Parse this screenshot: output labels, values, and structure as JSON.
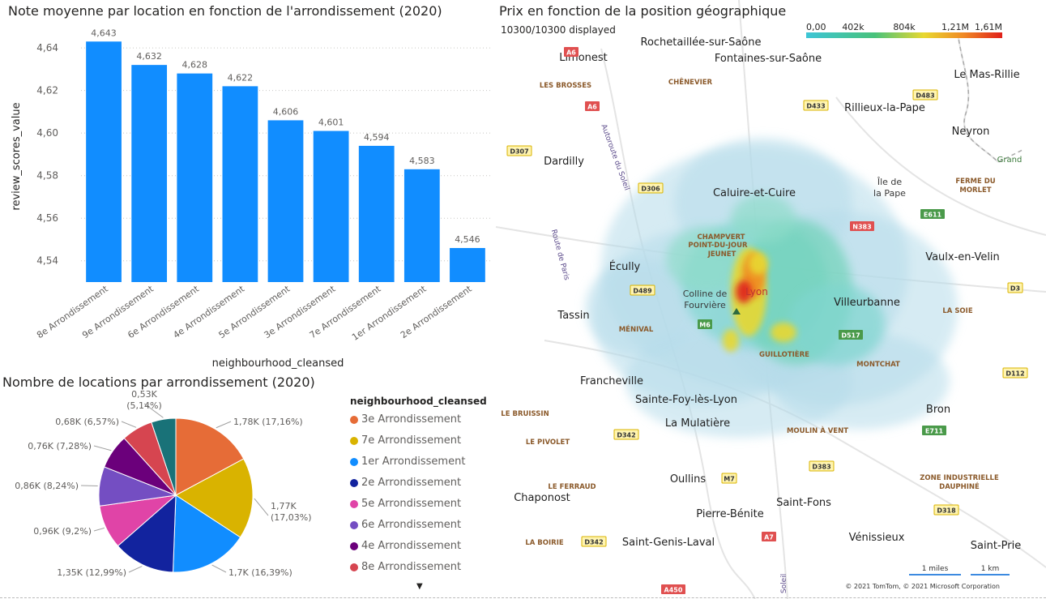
{
  "bar_chart": {
    "title": "Note moyenne par location en fonction de l'arrondissement (2020)"
  },
  "pie_chart": {
    "title": "Nombre de locations par arrondissement (2020)",
    "legend_title": "neighbourhood_cleansed",
    "more_icon": "caret-down-icon"
  },
  "map": {
    "title": "Prix en fonction de la position géographique",
    "status": "10300/10300 displayed",
    "scale_ticks": [
      "0,00",
      "402k",
      "804k",
      "1,21M",
      "1,61M"
    ],
    "scale_colors": [
      "#3dc5d6",
      "#48c27b",
      "#e8d830",
      "#f08a24",
      "#e0201a"
    ],
    "scale_miles": "1 miles",
    "scale_km": "1 km",
    "copyright": "© 2021 TomTom, © 2021 Microsoft Corporation",
    "places": [
      {
        "text": "Rochetaillée-sur-Saône",
        "kind": "city"
      },
      {
        "text": "Limonest",
        "kind": "city"
      },
      {
        "text": "Fontaines-sur-Saône",
        "kind": "city"
      },
      {
        "text": "Le Mas-Rillie",
        "kind": "city"
      },
      {
        "text": "Rillieux-la-Pape",
        "kind": "city"
      },
      {
        "text": "Neyron",
        "kind": "city"
      },
      {
        "text": "Dardilly",
        "kind": "city"
      },
      {
        "text": "Caluire-et-Cuire",
        "kind": "city"
      },
      {
        "text": "Île de",
        "kind": "area"
      },
      {
        "text": "la Pape",
        "kind": "area"
      },
      {
        "text": "Écully",
        "kind": "city"
      },
      {
        "text": "Vaulx-en-Velin",
        "kind": "city"
      },
      {
        "text": "Colline de",
        "kind": "area"
      },
      {
        "text": "Fourvière",
        "kind": "area"
      },
      {
        "text": "Lyon",
        "kind": "area"
      },
      {
        "text": "Tassin",
        "kind": "city"
      },
      {
        "text": "Villeurbanne",
        "kind": "city"
      },
      {
        "text": "Francheville",
        "kind": "city"
      },
      {
        "text": "Sainte-Foy-lès-Lyon",
        "kind": "city"
      },
      {
        "text": "Bron",
        "kind": "city"
      },
      {
        "text": "La Mulatière",
        "kind": "city"
      },
      {
        "text": "Oullins",
        "kind": "city"
      },
      {
        "text": "Chaponost",
        "kind": "city"
      },
      {
        "text": "Saint-Fons",
        "kind": "city"
      },
      {
        "text": "Pierre-Bénite",
        "kind": "city"
      },
      {
        "text": "Vénissieux",
        "kind": "city"
      },
      {
        "text": "Saint-Genis-Laval",
        "kind": "city"
      },
      {
        "text": "Saint-Prie",
        "kind": "city"
      },
      {
        "text": "LES BROSSES",
        "kind": "district"
      },
      {
        "text": "CHÊNEVIER",
        "kind": "district"
      },
      {
        "text": "FERME DU",
        "kind": "district"
      },
      {
        "text": "MORLET",
        "kind": "district"
      },
      {
        "text": "CHAMPVERT",
        "kind": "district"
      },
      {
        "text": "POINT-DU-JOUR",
        "kind": "district"
      },
      {
        "text": "JEUNET",
        "kind": "district"
      },
      {
        "text": "LA SOIE",
        "kind": "district"
      },
      {
        "text": "MÉNIVAL",
        "kind": "district"
      },
      {
        "text": "GUILLOTIÈRE",
        "kind": "district"
      },
      {
        "text": "MONTCHAT",
        "kind": "district"
      },
      {
        "text": "LE BRUISSIN",
        "kind": "district"
      },
      {
        "text": "LE PIVOLET",
        "kind": "district"
      },
      {
        "text": "MOULIN À VENT",
        "kind": "district"
      },
      {
        "text": "LE FERRAUD",
        "kind": "district"
      },
      {
        "text": "ZONE INDUSTRIELLE",
        "kind": "district"
      },
      {
        "text": "DAUPHINÉ",
        "kind": "district"
      },
      {
        "text": "LA BOIRIE",
        "kind": "district"
      },
      {
        "text": "Autoroute du Soleil",
        "kind": "road"
      },
      {
        "text": "Route de Paris",
        "kind": "road"
      },
      {
        "text": "Soleil",
        "kind": "road"
      },
      {
        "text": "Grand",
        "kind": "area"
      }
    ],
    "shields": [
      {
        "text": "A6",
        "type": "red"
      },
      {
        "text": "A6",
        "type": "red"
      },
      {
        "text": "D433",
        "type": "yellow"
      },
      {
        "text": "D483",
        "type": "yellow"
      },
      {
        "text": "D307",
        "type": "yellow"
      },
      {
        "text": "D306",
        "type": "yellow"
      },
      {
        "text": "E611",
        "type": "green"
      },
      {
        "text": "N383",
        "type": "red"
      },
      {
        "text": "D489",
        "type": "yellow"
      },
      {
        "text": "M6",
        "type": "green"
      },
      {
        "text": "D517",
        "type": "green"
      },
      {
        "text": "D112",
        "type": "yellow"
      },
      {
        "text": "E711",
        "type": "green"
      },
      {
        "text": "D342",
        "type": "yellow"
      },
      {
        "text": "D383",
        "type": "yellow"
      },
      {
        "text": "M7",
        "type": "yellow"
      },
      {
        "text": "D318",
        "type": "yellow"
      },
      {
        "text": "A7",
        "type": "red"
      },
      {
        "text": "D342",
        "type": "yellow"
      },
      {
        "text": "A450",
        "type": "red"
      },
      {
        "text": "D3",
        "type": "yellow"
      }
    ]
  },
  "chart_data": [
    {
      "type": "bar",
      "title": "Note moyenne par location en fonction de l'arrondissement (2020)",
      "xlabel": "neighbourhood_cleansed",
      "ylabel": "review_scores_value",
      "categories": [
        "8e Arrondissement",
        "9e Arrondissement",
        "6e Arrondissement",
        "4e Arrondissement",
        "5e Arrondissement",
        "3e Arrondissement",
        "7e Arrondissement",
        "1er Arrondissement",
        "2e Arrondissement"
      ],
      "values": [
        4.643,
        4.632,
        4.628,
        4.622,
        4.606,
        4.601,
        4.594,
        4.583,
        4.546
      ],
      "value_labels": [
        "4,643",
        "4,632",
        "4,628",
        "4,622",
        "4,606",
        "4,601",
        "4,594",
        "4,583",
        "4,546"
      ],
      "yticks": [
        "4,54",
        "4,56",
        "4,58",
        "4,60",
        "4,62",
        "4,64"
      ],
      "ylim": [
        4.53,
        4.645
      ],
      "grid": true,
      "color": "#118dff"
    },
    {
      "type": "pie",
      "title": "Nombre de locations par arrondissement (2020)",
      "legend_title": "neighbourhood_cleansed",
      "slices": [
        {
          "name": "3e Arrondissement",
          "value": 17.16,
          "label": "1,78K (17,16%)",
          "color": "#e66c37"
        },
        {
          "name": "7e Arrondissement",
          "value": 17.03,
          "label": "1,77K\n(17,03%)",
          "color": "#d9b300"
        },
        {
          "name": "1er Arrondissement",
          "value": 16.39,
          "label": "1,7K (16,39%)",
          "color": "#118dff"
        },
        {
          "name": "2e Arrondissement",
          "value": 12.99,
          "label": "1,35K (12,99%)",
          "color": "#12239e"
        },
        {
          "name": "5e Arrondissement",
          "value": 9.2,
          "label": "0,96K (9,2%)",
          "color": "#e044a7"
        },
        {
          "name": "6e Arrondissement",
          "value": 8.24,
          "label": "0,86K (8,24%)",
          "color": "#744ec2"
        },
        {
          "name": "4e Arrondissement",
          "value": 7.28,
          "label": "0,76K (7,28%)",
          "color": "#6b007b"
        },
        {
          "name": "8e Arrondissement",
          "value": 6.57,
          "label": "0,68K (6,57%)",
          "color": "#d64550"
        },
        {
          "name": "",
          "value": 5.14,
          "label": "0,53K\n(5,14%)",
          "color": "#197278"
        }
      ],
      "legend_position": "right"
    }
  ]
}
